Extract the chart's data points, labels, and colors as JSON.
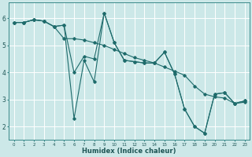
{
  "title": "",
  "xlabel": "Humidex (Indice chaleur)",
  "ylabel": "",
  "bg_color": "#cce8e8",
  "grid_color": "#ffffff",
  "line_color": "#1e6b6b",
  "marker_color": "#1e6b6b",
  "xlim": [
    -0.5,
    23.5
  ],
  "ylim": [
    1.5,
    6.6
  ],
  "yticks": [
    2,
    3,
    4,
    5,
    6
  ],
  "xticks": [
    0,
    1,
    2,
    3,
    4,
    5,
    6,
    7,
    8,
    9,
    10,
    11,
    12,
    13,
    14,
    15,
    16,
    17,
    18,
    19,
    20,
    21,
    22,
    23
  ],
  "line1_x": [
    0,
    1,
    2,
    3,
    4,
    5,
    6,
    7,
    8,
    9,
    10,
    11,
    12,
    13,
    14,
    15,
    16,
    17,
    18,
    19,
    20,
    21,
    22,
    23
  ],
  "line1_y": [
    5.85,
    5.85,
    5.95,
    5.9,
    5.7,
    5.25,
    5.25,
    5.2,
    5.1,
    5.0,
    4.85,
    4.7,
    4.55,
    4.45,
    4.35,
    4.2,
    4.05,
    3.9,
    3.5,
    3.2,
    3.1,
    3.05,
    2.85,
    2.9
  ],
  "line2_x": [
    0,
    1,
    2,
    3,
    4,
    5,
    6,
    7,
    8,
    9,
    10,
    11,
    12,
    13,
    14,
    15,
    16,
    17,
    18,
    19,
    20,
    21,
    22,
    23
  ],
  "line2_y": [
    5.85,
    5.85,
    5.95,
    5.9,
    5.7,
    5.75,
    4.0,
    4.6,
    4.5,
    6.2,
    5.1,
    4.45,
    4.4,
    4.35,
    4.35,
    4.75,
    3.95,
    2.65,
    2.0,
    1.75,
    3.2,
    3.25,
    2.85,
    2.95
  ],
  "line3_x": [
    0,
    1,
    2,
    3,
    4,
    5,
    6,
    7,
    8,
    9,
    10,
    11,
    12,
    13,
    14,
    15,
    16,
    17,
    18,
    19,
    20,
    21,
    22,
    23
  ],
  "line3_y": [
    5.85,
    5.85,
    5.95,
    5.9,
    5.7,
    5.75,
    2.3,
    4.45,
    3.65,
    6.2,
    5.1,
    4.45,
    4.4,
    4.35,
    4.35,
    4.75,
    3.95,
    2.65,
    2.0,
    1.75,
    3.2,
    3.25,
    2.85,
    2.95
  ]
}
